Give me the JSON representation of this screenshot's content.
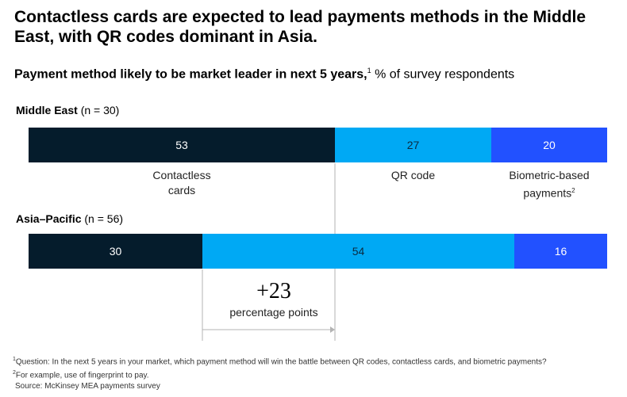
{
  "title": "Contactless cards are expected to lead payments methods in the Middle East, with QR codes dominant in Asia.",
  "subtitle": {
    "bold": "Payment method likely to be market leader in next 5 years,",
    "sup": "1",
    "rest": " % of survey respondents"
  },
  "colors": {
    "contactless": "#051c2c",
    "qr": "#00a9f4",
    "biometric": "#2251ff",
    "guide": "#b3b3b3"
  },
  "chart_data": {
    "type": "bar",
    "orientation": "horizontal-stacked-100",
    "categories": [
      "Middle East",
      "Asia–Pacific"
    ],
    "group_n": [
      "(n = 30)",
      "(n = 56)"
    ],
    "series": [
      {
        "name": "Contactless cards",
        "values": [
          53,
          30
        ]
      },
      {
        "name": "QR code",
        "values": [
          27,
          54
        ]
      },
      {
        "name": "Biometric-based payments",
        "values": [
          20,
          16
        ]
      }
    ],
    "category_labels": [
      {
        "line1": "Contactless",
        "line2": "cards",
        "sup": ""
      },
      {
        "line1": "QR code",
        "line2": "",
        "sup": ""
      },
      {
        "line1": "Biometric-based",
        "line2": "payments",
        "sup": "2"
      }
    ],
    "annotation": {
      "value": "+23",
      "label": "percentage points"
    },
    "xlim": [
      0,
      100
    ]
  },
  "footnotes": {
    "note1_sup": "1",
    "note1": "Question: In the next 5 years in your market, which payment method will win the battle between QR codes, contactless cards, and biometric payments?",
    "note2_sup": "2",
    "note2": "For example, use of fingerprint to pay.",
    "source": "Source: McKinsey MEA payments survey"
  }
}
